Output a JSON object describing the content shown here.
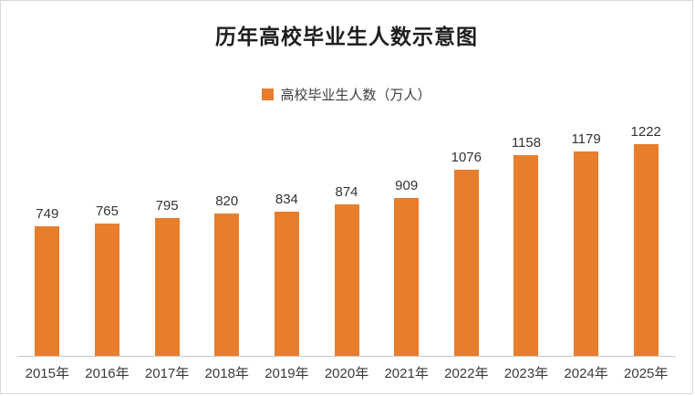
{
  "chart_data": {
    "type": "bar",
    "title": "历年高校毕业生人数示意图",
    "legend": "高校毕业生人数（万人）",
    "categories": [
      "2015年",
      "2016年",
      "2017年",
      "2018年",
      "2019年",
      "2020年",
      "2021年",
      "2022年",
      "2023年",
      "2024年",
      "2025年"
    ],
    "values": [
      749,
      765,
      795,
      820,
      834,
      874,
      909,
      1076,
      1158,
      1179,
      1222
    ],
    "xlabel": "",
    "ylabel": "",
    "ylim": [
      0,
      1300
    ],
    "grid": false,
    "legend_position": "top-center",
    "bar_color": "#e87d2b",
    "value_labels_shown": true
  },
  "colors": {
    "bar": "#e87d2b",
    "title_text": "#1f1f1f",
    "value_text": "#333333",
    "axis_line": "#c8c8c8",
    "frame_border": "#d9d9d9"
  }
}
